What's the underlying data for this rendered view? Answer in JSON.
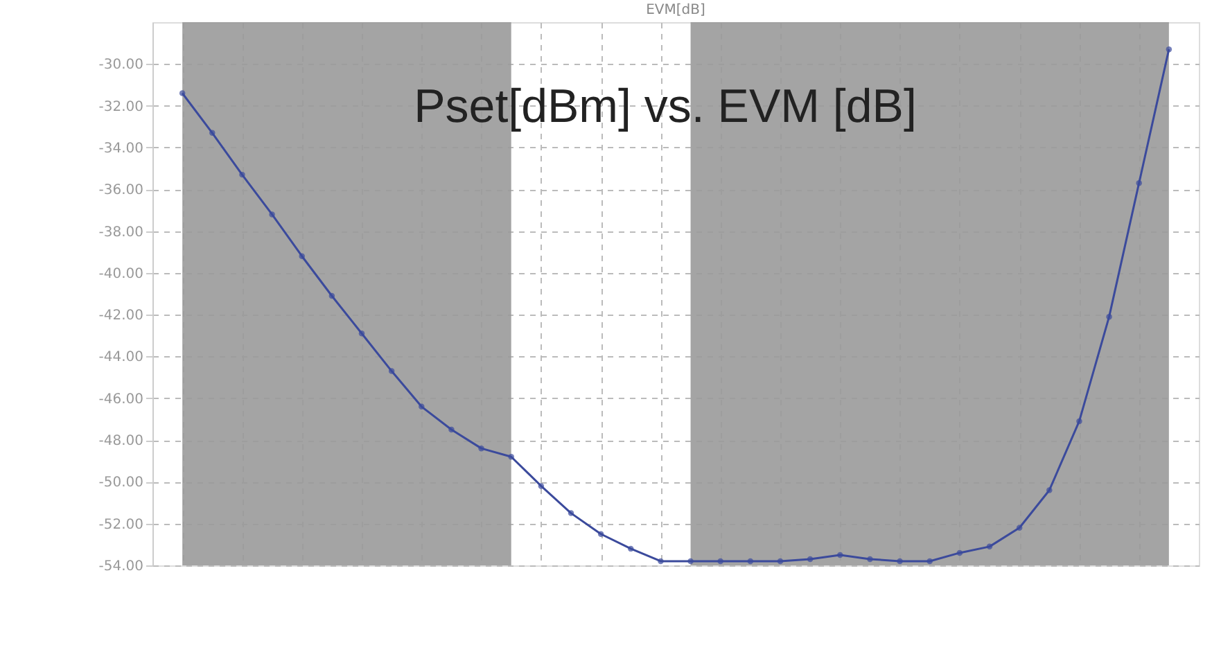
{
  "chart_data": {
    "type": "line",
    "title": "EVM[dB]",
    "annotations": [
      "Pset[dBm] vs. EVM [dB]"
    ],
    "categories": [
      null,
      null,
      null,
      null,
      null,
      null,
      null,
      null,
      null,
      null,
      null,
      null,
      null,
      null,
      null,
      null,
      null,
      null,
      null,
      null,
      null,
      null,
      null,
      null,
      null,
      null,
      null,
      null,
      null,
      null,
      null,
      null,
      null,
      null
    ],
    "series": [
      {
        "color": "#3b4a9c",
        "values": [
          -31.4,
          -33.3,
          -35.3,
          -37.2,
          -39.2,
          -41.1,
          -42.9,
          -44.7,
          -46.4,
          -47.5,
          -48.4,
          -48.8,
          -50.2,
          -51.5,
          -52.5,
          -53.2,
          -53.8,
          -53.8,
          -53.8,
          -53.8,
          -53.8,
          -53.7,
          -53.5,
          -53.7,
          -53.8,
          -53.8,
          -53.4,
          -53.1,
          -52.2,
          -50.4,
          -47.1,
          -42.1,
          -35.7,
          -29.3
        ]
      }
    ],
    "ylim": [
      -54,
      -28
    ],
    "yticks": [
      {
        "value": -30,
        "label": "-30.00"
      },
      {
        "value": -32,
        "label": "-32.00"
      },
      {
        "value": -34,
        "label": "-34.00"
      },
      {
        "value": -36,
        "label": "-36.00"
      },
      {
        "value": -38,
        "label": "-38.00"
      },
      {
        "value": -40,
        "label": "-40.00"
      },
      {
        "value": -42,
        "label": "-42.00"
      },
      {
        "value": -44,
        "label": "-44.00"
      },
      {
        "value": -46,
        "label": "-46.00"
      },
      {
        "value": -48,
        "label": "-48.00"
      },
      {
        "value": -50,
        "label": "-50.00"
      },
      {
        "value": -52,
        "label": "-52.00"
      },
      {
        "value": -54,
        "label": "-54.00"
      }
    ],
    "tick_labels": "y",
    "grid": true,
    "marker": "circle",
    "line_style": "solid"
  }
}
